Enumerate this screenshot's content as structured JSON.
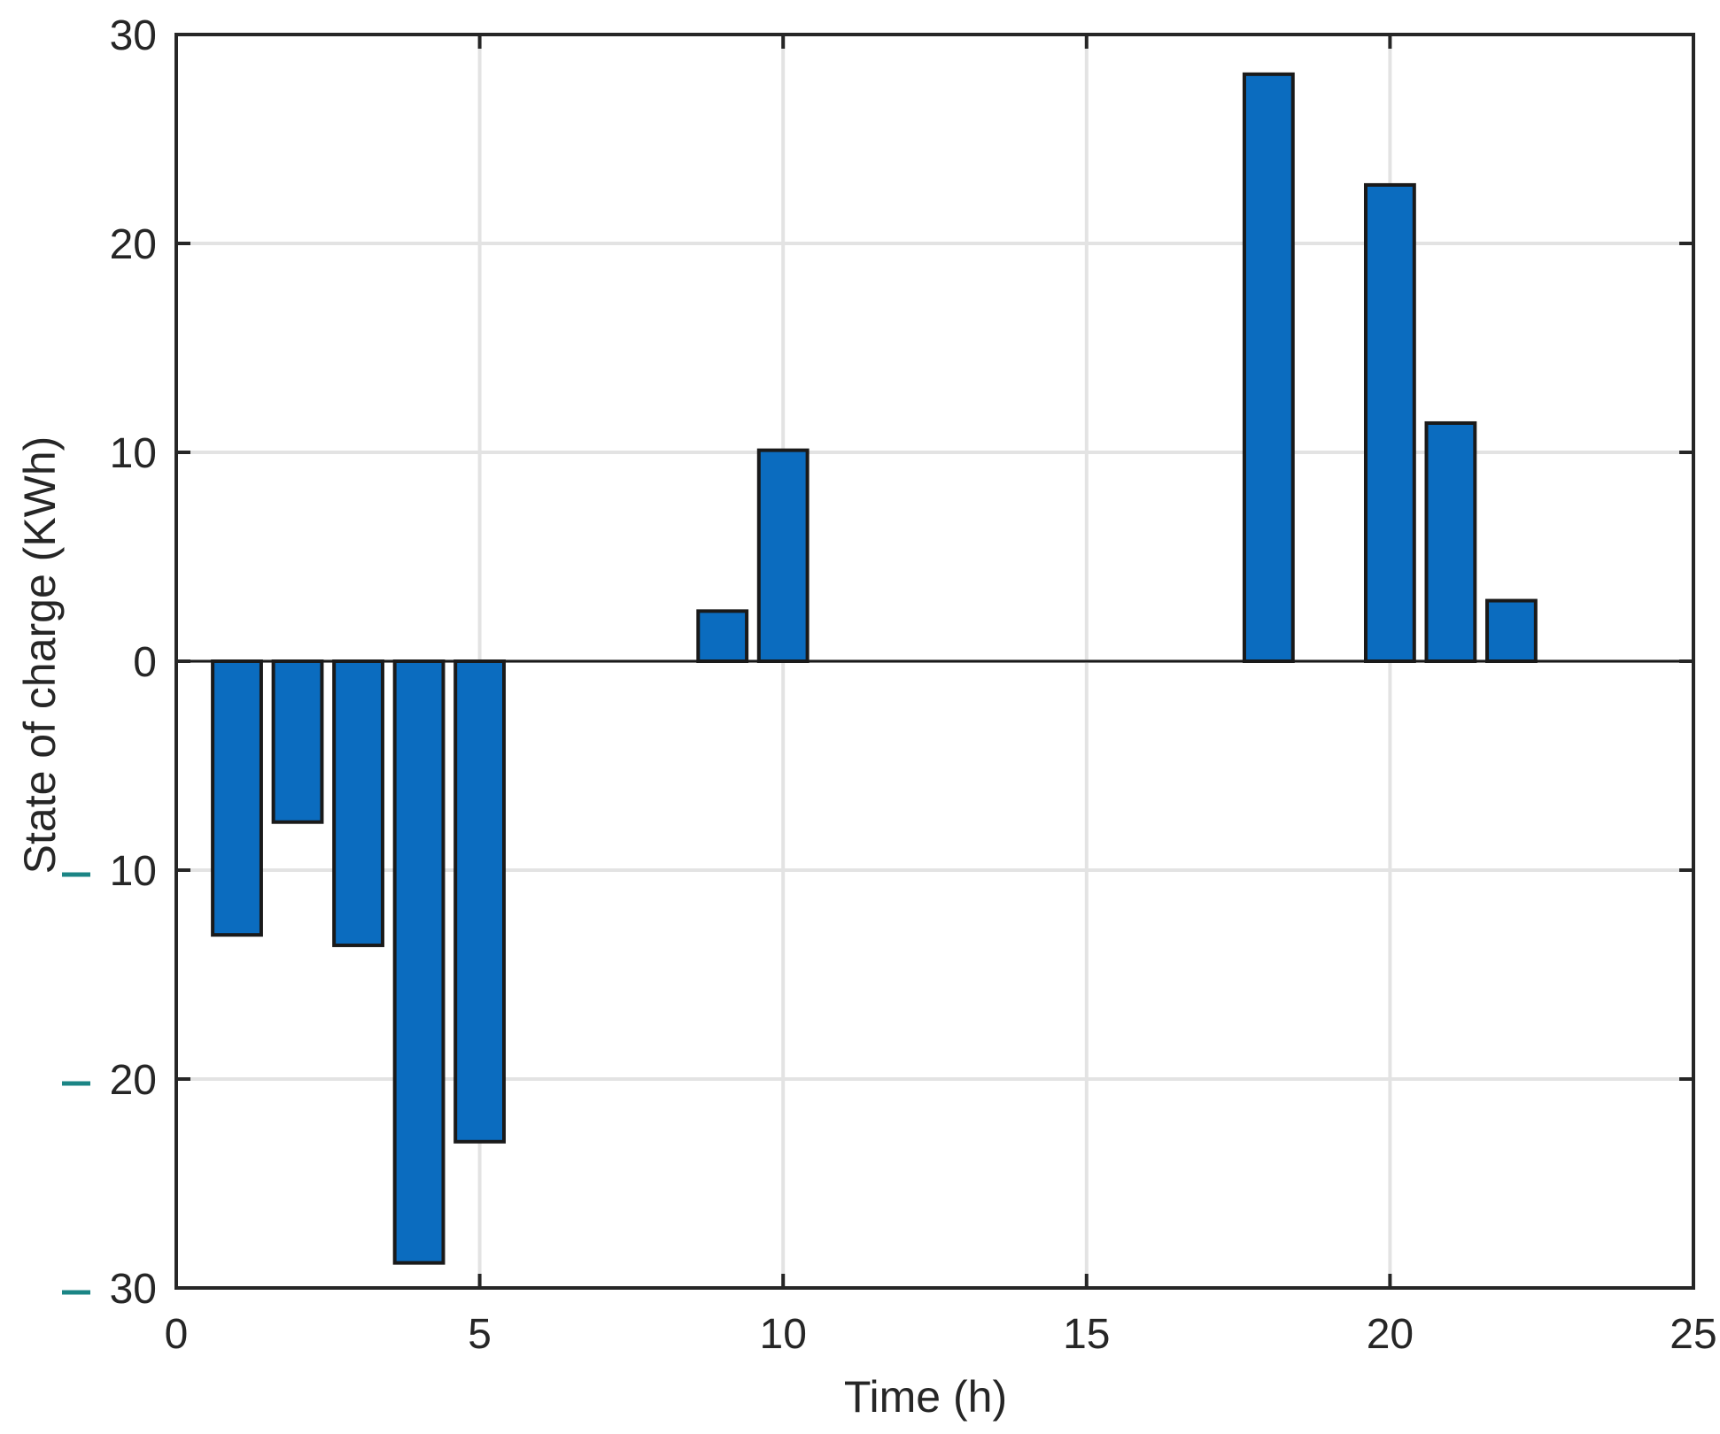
{
  "chart_data": {
    "type": "bar",
    "xlabel": "Time (h)",
    "ylabel": "State of charge (KWh)",
    "xlim": [
      0,
      25
    ],
    "ylim": [
      -30,
      30
    ],
    "xticks": [
      0,
      5,
      10,
      15,
      20,
      25
    ],
    "yticks": [
      -30,
      -20,
      -10,
      0,
      10,
      20,
      30
    ],
    "ytick_labels": [
      "30",
      "20",
      "10",
      "0",
      "10",
      "20",
      "30"
    ],
    "grid": true,
    "x": [
      1,
      2,
      3,
      4,
      5,
      6,
      7,
      8,
      9,
      10,
      11,
      12,
      13,
      14,
      15,
      16,
      17,
      18,
      19,
      20,
      21,
      22,
      23,
      24
    ],
    "values": [
      -13.1,
      -7.7,
      -13.6,
      -28.8,
      -23.0,
      0,
      0,
      0,
      2.4,
      10.1,
      0,
      0,
      0,
      0,
      0,
      0,
      0,
      28.1,
      0,
      22.8,
      11.4,
      2.9,
      0,
      0
    ],
    "colors": {
      "bar_fill": "#0b6cbf",
      "bar_edge": "#1a1a1a",
      "axis": "#262626",
      "grid": "#e3e3e3",
      "minus_marks": "#1b8585"
    }
  }
}
